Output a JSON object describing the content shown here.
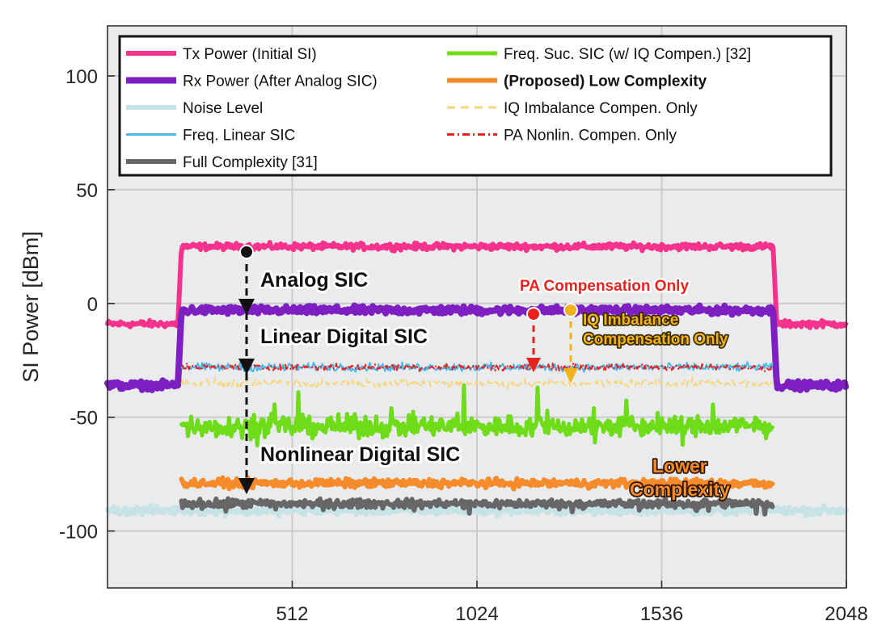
{
  "chart_data": {
    "type": "line",
    "title": "",
    "xlabel": "",
    "ylabel": "SI Power [dBm]",
    "xlim": [
      0,
      2048
    ],
    "ylim": [
      -125,
      122
    ],
    "x_ticks": [
      512,
      1024,
      1536,
      2048
    ],
    "y_ticks": [
      100,
      50,
      0,
      -50,
      -100
    ],
    "grid": true,
    "legend_position": "top",
    "active_band": [
      205,
      1845
    ],
    "series": [
      {
        "name": "Tx Power (Initial SI)",
        "color": "#f5338c",
        "style": "solid",
        "width": 6,
        "in_band": 25,
        "out_band": -9,
        "noise": 1.2
      },
      {
        "name": "Rx Power (After Analog SIC)",
        "color": "#7d1fc1",
        "style": "solid",
        "width": 8,
        "in_band": -3,
        "out_band": -36,
        "noise": 1.4
      },
      {
        "name": "Noise Level",
        "color": "#c7e3e6",
        "style": "solid",
        "width": 6,
        "in_band": -91,
        "out_band": -91,
        "noise": 1.6
      },
      {
        "name": "Freq. Linear SIC",
        "color": "#4bb8ec",
        "style": "solid",
        "width": 2,
        "in_band": -28,
        "out_band": null,
        "noise": 1.5
      },
      {
        "name": "Full Complexity [31]",
        "color": "#676767",
        "style": "solid",
        "width": 6,
        "in_band": -88,
        "out_band": null,
        "noise": 1.6
      },
      {
        "name": "Freq. Suc. SIC (w/ IQ Compen.) [32]",
        "color": "#6fdc19",
        "style": "solid",
        "width": 5,
        "in_band": -54,
        "out_band": null,
        "noise": 4
      },
      {
        "name": "(Proposed) Low Complexity",
        "color": "#f58b2a",
        "style": "solid",
        "width": 6,
        "in_band": -79,
        "out_band": null,
        "noise": 1.6
      },
      {
        "name": "IQ Imbalance Compen. Only",
        "color": "#f7d77a",
        "style": "dashed",
        "width": 2,
        "in_band": -35,
        "out_band": null,
        "noise": 1.5
      },
      {
        "name": "PA Nonlin. Compen. Only",
        "color": "#e8231e",
        "style": "dashdot",
        "width": 2,
        "in_band": -28,
        "out_band": null,
        "noise": 1.2
      }
    ],
    "annotations": {
      "analog_sic": "Analog SIC",
      "linear_digital_sic": "Linear Digital SIC",
      "nonlinear_digital_sic": "Nonlinear Digital SIC",
      "pa_only": "PA Compensation Only",
      "iq_line1": "IQ Imbalance",
      "iq_line2": "Compensation Only",
      "lower_line1": "Lower",
      "lower_line2": "Complexity"
    }
  }
}
